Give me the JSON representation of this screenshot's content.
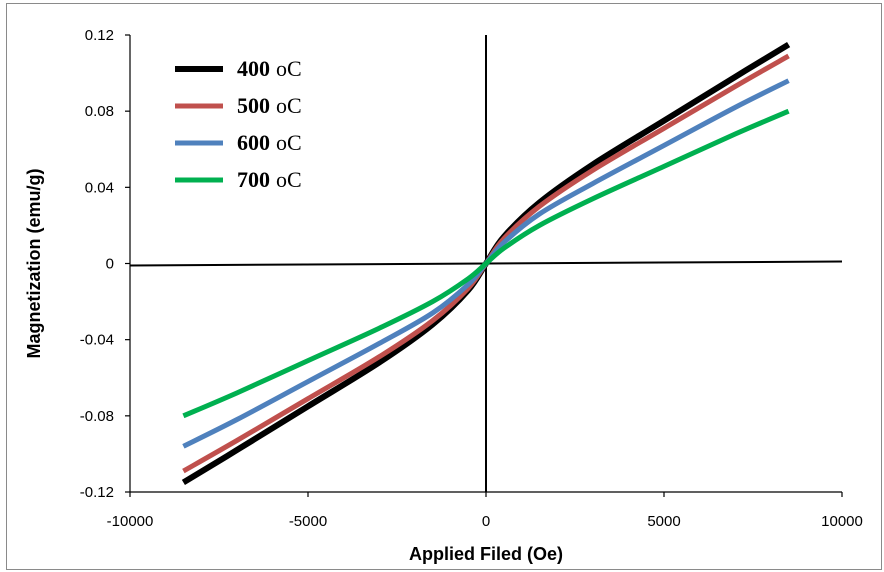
{
  "chart_data": {
    "type": "line",
    "title": "",
    "xlabel": "Applied Filed (Oe)",
    "ylabel": "Magnetization (emu/g)",
    "xlim": [
      -10000,
      10000
    ],
    "ylim": [
      -0.12,
      0.12
    ],
    "x_ticks": [
      "-10000",
      "-5000",
      "0",
      "5000",
      "10000"
    ],
    "y_ticks": [
      "0.12",
      "0.08",
      "0.04",
      "0",
      "-0.04",
      "-0.08",
      "-0.12"
    ],
    "grid": false,
    "legend_position": "top-left",
    "x": [
      -8500,
      -7000,
      -5000,
      -3000,
      -1500,
      -500,
      0,
      500,
      1500,
      3000,
      5000,
      7000,
      8500
    ],
    "series": [
      {
        "name": "400",
        "unit": "oC",
        "color": "#000000",
        "values": [
          -0.115,
          -0.098,
          -0.075,
          -0.052,
          -0.032,
          -0.014,
          0,
          0.014,
          0.032,
          0.052,
          0.075,
          0.098,
          0.115
        ]
      },
      {
        "name": "500",
        "unit": "oC",
        "color": "#c0504d",
        "values": [
          -0.109,
          -0.093,
          -0.071,
          -0.049,
          -0.03,
          -0.013,
          0,
          0.013,
          0.03,
          0.049,
          0.071,
          0.093,
          0.109
        ]
      },
      {
        "name": "600",
        "unit": "oC",
        "color": "#4f81bd",
        "values": [
          -0.096,
          -0.082,
          -0.062,
          -0.042,
          -0.026,
          -0.011,
          0,
          0.011,
          0.026,
          0.042,
          0.062,
          0.082,
          0.096
        ]
      },
      {
        "name": "700",
        "unit": "oC",
        "color": "#00b050",
        "values": [
          -0.08,
          -0.068,
          -0.051,
          -0.034,
          -0.02,
          -0.008,
          0,
          0.008,
          0.02,
          0.034,
          0.051,
          0.068,
          0.08
        ]
      }
    ]
  }
}
